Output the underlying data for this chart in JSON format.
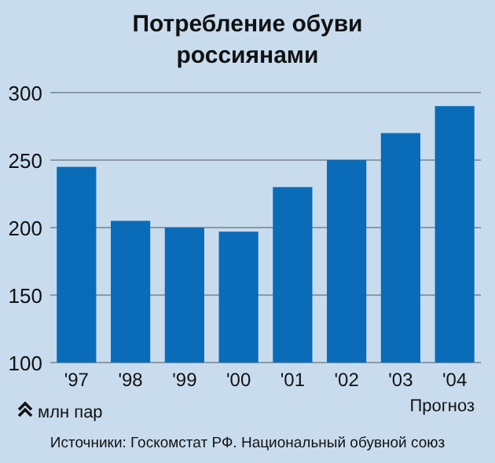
{
  "chart_data": {
    "type": "bar",
    "title": "Потребление обуви\nроссиянами",
    "categories": [
      "'97",
      "'98",
      "'99",
      "'00",
      "'01",
      "'02",
      "'03",
      "'04"
    ],
    "values": [
      245,
      205,
      200,
      197,
      230,
      250,
      270,
      290
    ],
    "color": "#0a6cb8",
    "ylim": [
      100,
      300
    ],
    "yticks": [
      100,
      150,
      200,
      250,
      300
    ],
    "grid": "y",
    "annotations": [
      "Прогноз",
      "млн пар",
      "Источники: Госкомстат РФ. Национальный обувной союз"
    ]
  }
}
